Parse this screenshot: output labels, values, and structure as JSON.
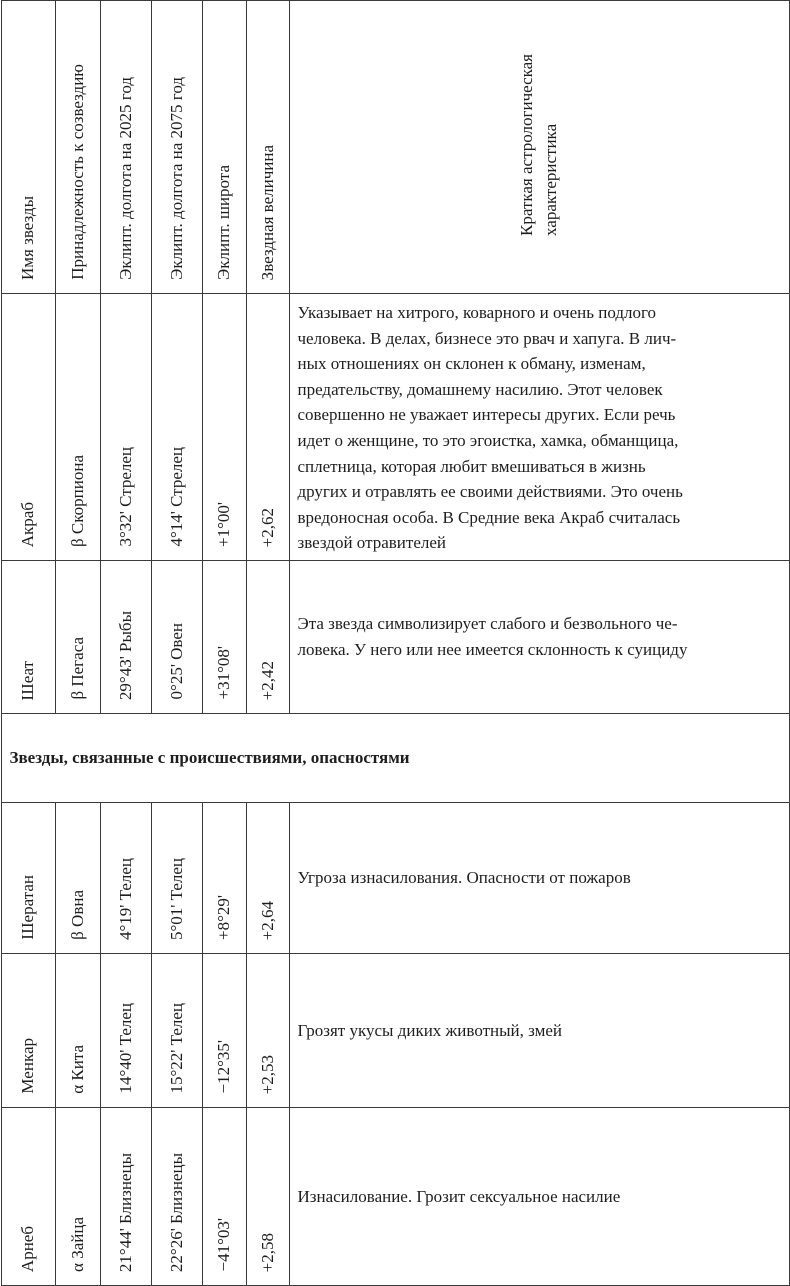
{
  "header": {
    "columns": [
      "Имя звезды",
      "Принадлежность к созвездию",
      "Эклипт. долгота  на 2025 год",
      "Эклипт. долгота  на 2075 год",
      "Эклипт. широта",
      "Звездная величина"
    ],
    "description_lines": [
      "Краткая астрологическая",
      "характеристика"
    ]
  },
  "group1": [
    {
      "name": "Акраб",
      "constellation": "β Скорпиона",
      "lon2025": "3°32' Стрелец",
      "lon2075": "4°14' Стрелец",
      "lat": "+1°00'",
      "mag": "+2,62",
      "description_lines": [
        "Указывает на хитрого, коварного и очень подлого",
        "человека. В делах, бизнесе это рвач и хапуга. В лич-",
        "ных отношениях он склонен к обману, изменам,",
        "предательству, домашнему насилию. Этот человек",
        "совершенно не уважает интересы других. Если речь",
        "идет о женщине, то это эгоистка, хамка, обманщица,",
        "сплетница, которая любит вмешиваться в жизнь",
        "других и отравлять ее своими действиями. Это очень",
        "вредоносная особа. В Средние века Акраб считалась",
        "звездой отравителей"
      ]
    },
    {
      "name": "Шеат",
      "constellation": "β Пегаса",
      "lon2025": "29°43' Рыбы",
      "lon2075": "0°25' Овен",
      "lat": "+31°08'",
      "mag": "+2,42",
      "description_lines": [
        "Эта звезда символизирует слабого и безвольного че-",
        "ловека. У него или нее имеется склонность к суициду"
      ]
    }
  ],
  "section_title": "Звезды, связанные с происшествиями, опасностями",
  "group2": [
    {
      "name": "Шератан",
      "constellation": "β Овна",
      "lon2025": "4°19' Телец",
      "lon2075": "5°01' Телец",
      "lat": "+8°29'",
      "mag": "+2,64",
      "description_lines": [
        "Угроза изнасилования. Опасности от пожаров"
      ]
    },
    {
      "name": "Менкар",
      "constellation": "α Кита",
      "lon2025": "14°40' Телец",
      "lon2075": "15°22' Телец",
      "lat": "−12°35'",
      "mag": "+2,53",
      "description_lines": [
        "Грозят укусы диких животный, змей"
      ]
    },
    {
      "name": "Арнеб",
      "constellation": "α Зайца",
      "lon2025": "21°44' Близнецы",
      "lon2075": "22°26' Близнецы",
      "lat": "−41°03'",
      "mag": "+2,58",
      "description_lines": [
        "Изнасилование. Грозит сексуальное насилие"
      ]
    }
  ]
}
